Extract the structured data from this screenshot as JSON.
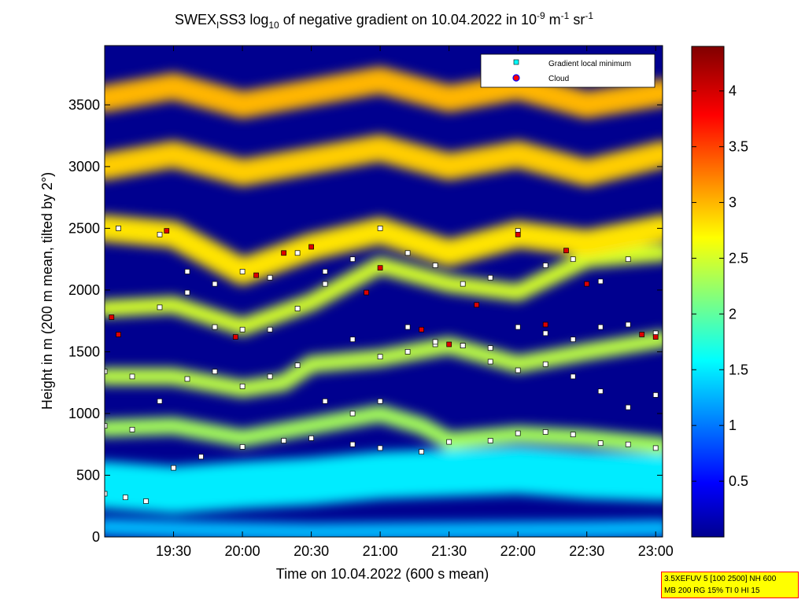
{
  "chart_data": {
    "type": "heatmap",
    "title": {
      "prefix": "SWEX",
      "subscript_1": "I",
      "middle": "SS3 log",
      "subscript_2": "10",
      "main": " of negative gradient on 10.04.2022 in 10",
      "sup_1": "-9",
      "unit_1": " m",
      "sup_2": "-1",
      "unit_2": " sr",
      "sup_3": "-1"
    },
    "xlabel": "Time on 10.04.2022 (600 s mean)",
    "ylabel": "Height in m (200 m mean, tilted by 2°)",
    "x_ticks": [
      "19:30",
      "20:00",
      "20:30",
      "21:00",
      "21:30",
      "22:00",
      "22:30",
      "23:00"
    ],
    "x_tick_hours": [
      19.5,
      20.0,
      20.5,
      21.0,
      21.5,
      22.0,
      22.5,
      23.0
    ],
    "x_range_hours": [
      19.0,
      23.05
    ],
    "y_ticks": [
      0,
      500,
      1000,
      1500,
      2000,
      2500,
      3000,
      3500
    ],
    "y_range": [
      0,
      3980
    ],
    "colorbar": {
      "ticks": [
        "0.5",
        "1",
        "1.5",
        "2",
        "2.5",
        "3",
        "3.5",
        "4"
      ],
      "tick_values": [
        0.5,
        1,
        1.5,
        2,
        2.5,
        3,
        3.5,
        4
      ],
      "range": [
        0,
        4.4
      ],
      "colormap": "jet"
    },
    "legend": {
      "placement": "top-right",
      "entries": [
        {
          "label": "Gradient local minimum",
          "color": "#00ffff",
          "marker": "square"
        },
        {
          "label": "Cloud",
          "color": "#ff0000",
          "marker": "circle"
        }
      ]
    },
    "layers": [
      {
        "role": "surface",
        "value": 1.3,
        "points": [
          [
            19.0,
            80
          ],
          [
            19.6,
            60
          ],
          [
            20.5,
            40
          ],
          [
            21.5,
            50
          ],
          [
            22.5,
            60
          ],
          [
            23.05,
            70
          ]
        ]
      },
      {
        "role": "lower-haze",
        "value": 1.5,
        "points": [
          [
            19.0,
            420
          ],
          [
            19.5,
            380
          ],
          [
            20.0,
            420
          ],
          [
            20.5,
            450
          ],
          [
            21.0,
            500
          ],
          [
            21.5,
            520
          ],
          [
            22.0,
            540
          ],
          [
            22.5,
            500
          ],
          [
            23.05,
            480
          ]
        ]
      },
      {
        "role": "aerosol-layer",
        "value": 2.3,
        "points": [
          [
            19.0,
            880
          ],
          [
            19.5,
            900
          ],
          [
            20.0,
            800
          ],
          [
            20.5,
            900
          ],
          [
            21.0,
            1000
          ],
          [
            21.3,
            900
          ],
          [
            21.5,
            780
          ],
          [
            22.0,
            830
          ],
          [
            22.5,
            800
          ],
          [
            23.05,
            740
          ]
        ]
      },
      {
        "role": "aerosol-layer",
        "value": 2.4,
        "points": [
          [
            19.0,
            1300
          ],
          [
            19.5,
            1300
          ],
          [
            20.0,
            1200
          ],
          [
            20.3,
            1250
          ],
          [
            20.5,
            1400
          ],
          [
            21.0,
            1450
          ],
          [
            21.5,
            1550
          ],
          [
            22.0,
            1400
          ],
          [
            22.5,
            1500
          ],
          [
            23.05,
            1600
          ]
        ]
      },
      {
        "role": "aerosol-layer",
        "value": 2.5,
        "points": [
          [
            19.0,
            1850
          ],
          [
            19.5,
            1880
          ],
          [
            20.0,
            1700
          ],
          [
            20.5,
            1900
          ],
          [
            21.0,
            2200
          ],
          [
            21.5,
            2050
          ],
          [
            22.0,
            1980
          ],
          [
            22.5,
            2250
          ],
          [
            23.05,
            2300
          ]
        ]
      },
      {
        "role": "upper-layer",
        "value": 2.8,
        "points": [
          [
            19.0,
            2500
          ],
          [
            19.5,
            2450
          ],
          [
            20.0,
            2150
          ],
          [
            20.5,
            2350
          ],
          [
            21.0,
            2480
          ],
          [
            21.5,
            2300
          ],
          [
            22.0,
            2450
          ],
          [
            22.5,
            2380
          ],
          [
            23.05,
            2500
          ]
        ]
      },
      {
        "role": "upper-layer",
        "value": 2.9,
        "points": [
          [
            19.0,
            3000
          ],
          [
            19.5,
            3100
          ],
          [
            20.0,
            2950
          ],
          [
            20.5,
            3050
          ],
          [
            21.0,
            3150
          ],
          [
            21.5,
            3000
          ],
          [
            22.0,
            3100
          ],
          [
            22.5,
            2950
          ],
          [
            23.05,
            3100
          ]
        ]
      },
      {
        "role": "upper-layer",
        "value": 3.0,
        "points": [
          [
            19.0,
            3550
          ],
          [
            19.5,
            3650
          ],
          [
            20.0,
            3500
          ],
          [
            20.5,
            3600
          ],
          [
            21.0,
            3700
          ],
          [
            21.5,
            3550
          ],
          [
            22.0,
            3650
          ],
          [
            22.5,
            3500
          ],
          [
            23.05,
            3600
          ]
        ]
      }
    ],
    "minima_series": [
      {
        "name": "Gradient local minimum",
        "points": [
          [
            19.0,
            900
          ],
          [
            19.2,
            870
          ],
          [
            19.4,
            1100
          ],
          [
            19.6,
            1280
          ],
          [
            19.8,
            1340
          ],
          [
            20.0,
            1220
          ],
          [
            20.2,
            1300
          ],
          [
            20.4,
            1390
          ],
          [
            20.6,
            1100
          ],
          [
            20.8,
            1000
          ],
          [
            21.0,
            1100
          ],
          [
            21.2,
            1500
          ],
          [
            21.4,
            1560
          ],
          [
            21.6,
            1550
          ],
          [
            21.8,
            1420
          ],
          [
            22.0,
            1350
          ],
          [
            22.2,
            1400
          ],
          [
            22.4,
            1300
          ],
          [
            22.6,
            1180
          ],
          [
            22.8,
            1050
          ],
          [
            23.0,
            1150
          ]
        ]
      },
      {
        "name": "Gradient local minimum",
        "points": [
          [
            19.0,
            1340
          ],
          [
            19.2,
            1300
          ],
          [
            19.4,
            1860
          ],
          [
            19.6,
            1980
          ],
          [
            19.8,
            1700
          ],
          [
            20.0,
            1680
          ],
          [
            20.2,
            1680
          ],
          [
            20.4,
            1850
          ],
          [
            20.6,
            2050
          ],
          [
            20.8,
            1600
          ],
          [
            21.0,
            1460
          ],
          [
            21.2,
            1700
          ],
          [
            21.4,
            1580
          ],
          [
            21.6,
            1550
          ],
          [
            21.8,
            1530
          ],
          [
            22.0,
            1700
          ],
          [
            22.2,
            1650
          ],
          [
            22.4,
            1600
          ],
          [
            22.6,
            1700
          ],
          [
            22.8,
            1720
          ],
          [
            23.0,
            1650
          ]
        ]
      },
      {
        "name": "Gradient local minimum",
        "points": [
          [
            19.0,
            350
          ],
          [
            19.15,
            320
          ],
          [
            19.3,
            290
          ],
          [
            19.5,
            560
          ],
          [
            19.7,
            650
          ],
          [
            20.0,
            730
          ],
          [
            20.3,
            780
          ],
          [
            20.5,
            800
          ],
          [
            20.8,
            750
          ],
          [
            21.0,
            720
          ],
          [
            21.3,
            690
          ],
          [
            21.5,
            770
          ],
          [
            21.8,
            780
          ],
          [
            22.0,
            840
          ],
          [
            22.2,
            850
          ],
          [
            22.4,
            830
          ],
          [
            22.6,
            760
          ],
          [
            22.8,
            750
          ],
          [
            23.0,
            720
          ]
        ]
      },
      {
        "name": "Gradient local minimum",
        "points": [
          [
            19.1,
            2500
          ],
          [
            19.4,
            2450
          ],
          [
            19.6,
            2150
          ],
          [
            19.8,
            2050
          ],
          [
            20.0,
            2150
          ],
          [
            20.2,
            2100
          ],
          [
            20.4,
            2300
          ],
          [
            20.6,
            2150
          ],
          [
            20.8,
            2250
          ],
          [
            21.0,
            2500
          ],
          [
            21.2,
            2300
          ],
          [
            21.4,
            2200
          ],
          [
            21.6,
            2050
          ],
          [
            21.8,
            2100
          ],
          [
            22.0,
            2480
          ],
          [
            22.2,
            2200
          ],
          [
            22.4,
            2250
          ],
          [
            22.6,
            2070
          ],
          [
            22.8,
            2250
          ]
        ]
      }
    ],
    "cloud_series": [
      {
        "name": "Cloud",
        "points": [
          [
            19.05,
            1780
          ],
          [
            19.1,
            1640
          ],
          [
            19.45,
            2480
          ],
          [
            19.95,
            1620
          ],
          [
            20.1,
            2120
          ],
          [
            20.3,
            2300
          ],
          [
            20.5,
            2350
          ],
          [
            20.9,
            1980
          ],
          [
            21.0,
            2180
          ],
          [
            21.3,
            1680
          ],
          [
            21.5,
            1560
          ],
          [
            21.7,
            1880
          ],
          [
            22.0,
            2450
          ],
          [
            22.2,
            1720
          ],
          [
            22.35,
            2320
          ],
          [
            22.5,
            2050
          ],
          [
            22.9,
            1640
          ],
          [
            23.0,
            1620
          ]
        ]
      }
    ]
  },
  "info_box": {
    "line_1": "3.5XEFUV 5 [100 2500] NH 600",
    "line_2": "MB 200 RG 15% TI 0 HI 15"
  }
}
